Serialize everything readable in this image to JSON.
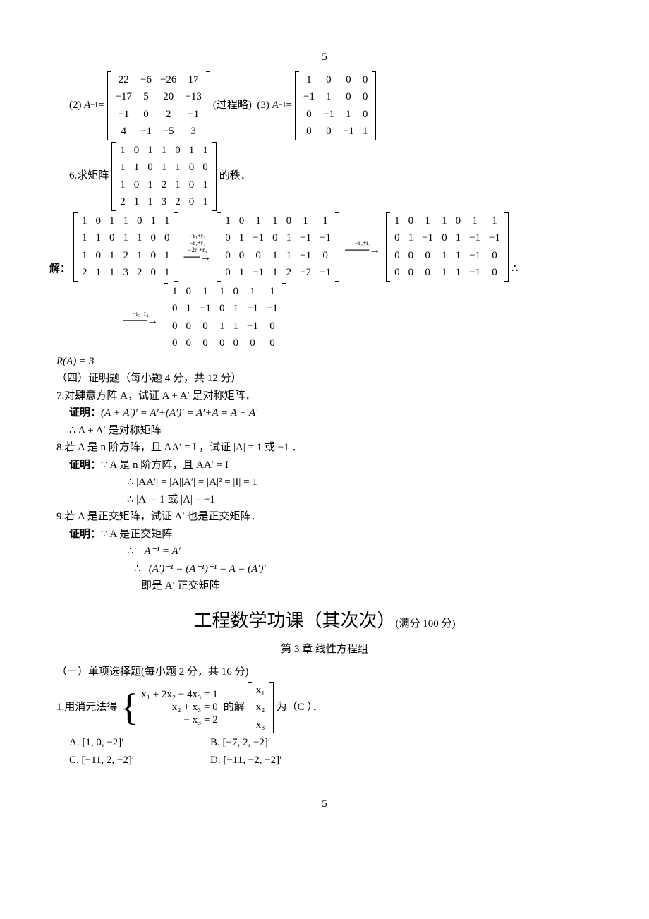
{
  "page_number_top": "5",
  "page_number_bottom": "5",
  "p1": {
    "label": "(2)",
    "lhs": "A",
    "exp": "−1",
    "eq": "=",
    "m": [
      [
        "22",
        "−6",
        "−26",
        "17"
      ],
      [
        "−17",
        "5",
        "20",
        "−13"
      ],
      [
        "−1",
        "0",
        "2",
        "−1"
      ],
      [
        "4",
        "−1",
        "−5",
        "3"
      ]
    ],
    "note": "(过程略)",
    "label2": "(3)",
    "lhs2": "A",
    "exp2": "−1",
    "eq2": "=",
    "m2": [
      [
        "1",
        "0",
        "0",
        "0"
      ],
      [
        "−1",
        "1",
        "0",
        "0"
      ],
      [
        "0",
        "−1",
        "1",
        "0"
      ],
      [
        "0",
        "0",
        "−1",
        "1"
      ]
    ]
  },
  "p2": {
    "label": "6.求矩阵",
    "m": [
      [
        "1",
        "0",
        "1",
        "1",
        "0",
        "1",
        "1"
      ],
      [
        "1",
        "1",
        "0",
        "1",
        "1",
        "0",
        "0"
      ],
      [
        "1",
        "0",
        "1",
        "2",
        "1",
        "0",
        "1"
      ],
      [
        "2",
        "1",
        "1",
        "3",
        "2",
        "0",
        "1"
      ]
    ],
    "tail": "的秩．"
  },
  "p3": {
    "head": "解：",
    "m1": [
      [
        "1",
        "0",
        "1",
        "1",
        "0",
        "1",
        "1"
      ],
      [
        "1",
        "1",
        "0",
        "1",
        "1",
        "0",
        "0"
      ],
      [
        "1",
        "0",
        "1",
        "2",
        "1",
        "0",
        "1"
      ],
      [
        "2",
        "1",
        "1",
        "3",
        "2",
        "0",
        "1"
      ]
    ],
    "a1": [
      "−r₁+r₂",
      "−r₁+r₃",
      "−2r₁+r₄"
    ],
    "m2": [
      [
        "1",
        "0",
        "1",
        "1",
        "0",
        "1",
        "1"
      ],
      [
        "0",
        "1",
        "−1",
        "0",
        "1",
        "−1",
        "−1"
      ],
      [
        "0",
        "0",
        "0",
        "1",
        "1",
        "−1",
        "0"
      ],
      [
        "0",
        "1",
        "−1",
        "1",
        "2",
        "−2",
        "−1"
      ]
    ],
    "a2": [
      "−r₂+r₄"
    ],
    "m3": [
      [
        "1",
        "0",
        "1",
        "1",
        "0",
        "1",
        "1"
      ],
      [
        "0",
        "1",
        "−1",
        "0",
        "1",
        "−1",
        "−1"
      ],
      [
        "0",
        "0",
        "0",
        "1",
        "1",
        "−1",
        "0"
      ],
      [
        "0",
        "0",
        "0",
        "1",
        "1",
        "−1",
        "0"
      ]
    ],
    "a3": [
      "−r₃+r₄"
    ],
    "m4": [
      [
        "1",
        "0",
        "1",
        "1",
        "0",
        "1",
        "1"
      ],
      [
        "0",
        "1",
        "−1",
        "0",
        "1",
        "−1",
        "−1"
      ],
      [
        "0",
        "0",
        "0",
        "1",
        "1",
        "−1",
        "0"
      ],
      [
        "0",
        "0",
        "0",
        "0",
        "0",
        "0",
        "0"
      ]
    ],
    "tail": "∴"
  },
  "p4": "R(A) = 3",
  "sec4": "（四）证明题（每小题 4 分，共 12 分）",
  "q7": "7.对肆意方阵 A，试证 A + A′ 是对称矩阵．",
  "q7p": "证明：",
  "q7b": "(A + A′)′ = A′+(A′)′ = A′+A = A + A′",
  "q7c": "∴  A + A′ 是对称矩阵",
  "q8": "8.若 A 是 n 阶方阵，且 AA′ = I ，试证 |A| = 1 或 −1 ．",
  "q8p": "证明：",
  "q8a": "∵  A 是 n 阶方阵，且 AA′ = I",
  "q8b": "∴    |AA′| = |A||A′| = |A|² = |I| = 1",
  "q8c": "∴    |A| = 1 或 |A| = −1",
  "q9": "9.若 A 是正交矩阵，试证  A′ 也是正交矩阵．",
  "q9p": "证明：",
  "q9a": "∵  A 是正交矩阵",
  "q9b_l": "∴",
  "q9b": "A⁻¹ = A′",
  "q9c_l": "∴",
  "q9c": "(A′)⁻¹ = (A⁻¹)⁻¹ = A = (A′)′",
  "q9d": "即是 A′ 正交矩阵",
  "title_main": "工程数学功课（其次次）",
  "title_sub": "(满分 100 分)",
  "chapter": "第 3 章  线性方程组",
  "sec1": "（一）单项选择题(每小题 2 分，共 16 分)",
  "q1": {
    "head": "1.用消元法得",
    "sys": [
      "x₁ + 2x₂ − 4x₃ = 1",
      "x₂ + x₃ = 0",
      "− x₃ = 2"
    ],
    "mid": "的解",
    "vec": [
      "x₁",
      "x₂",
      "x₃"
    ],
    "tail": "为（C  ）．"
  },
  "optA": "A. [1, 0, −2]′",
  "optB": "B. [−7, 2, −2]′",
  "optC": "C. [−11, 2, −2]′",
  "optD": "D. [−11, −2, −2]′"
}
